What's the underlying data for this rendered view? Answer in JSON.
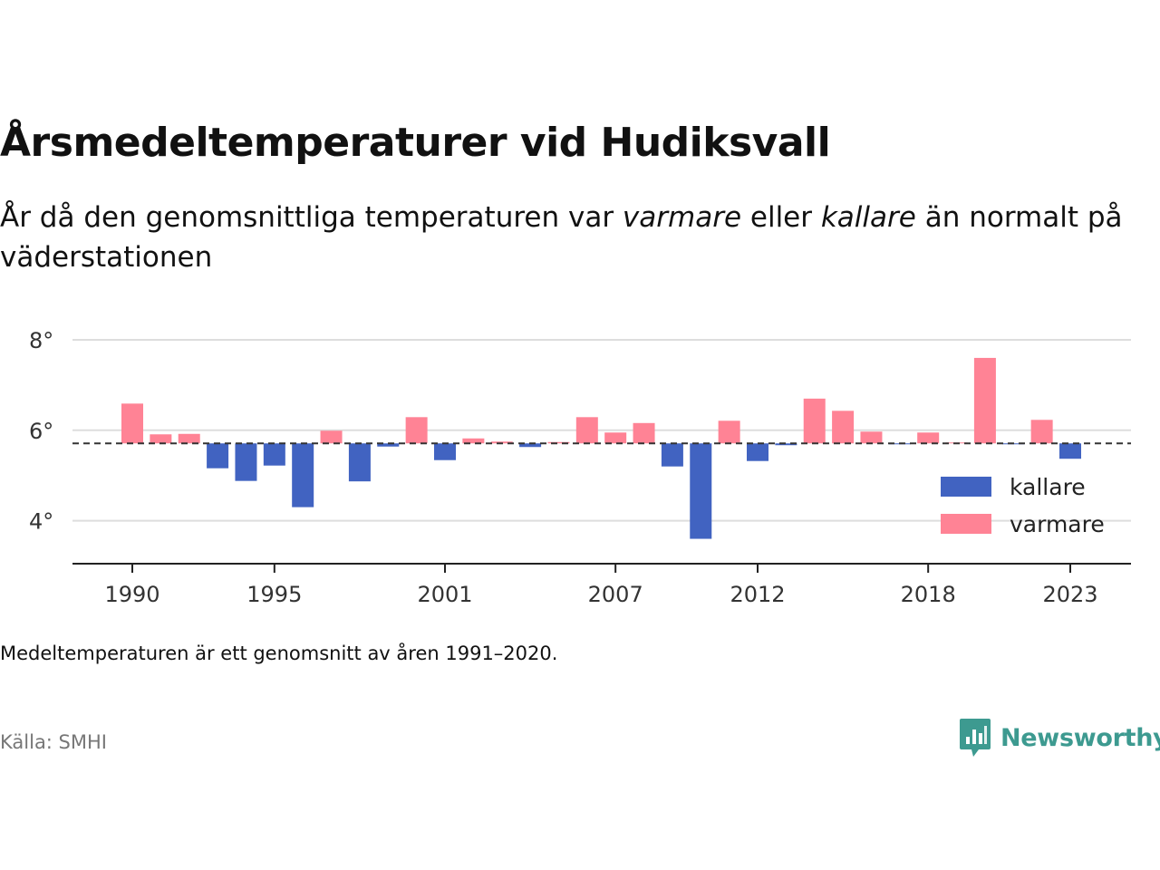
{
  "chart_data": {
    "type": "bar",
    "title": "Årsmedeltemperaturer vid Hudiksvall",
    "subtitle_parts": [
      "År då den genomsnittliga temperaturen var ",
      "varmare",
      " eller ",
      "kallare",
      " än normalt på väderstationen"
    ],
    "x": [
      1990,
      1991,
      1992,
      1993,
      1994,
      1995,
      1996,
      1997,
      1998,
      1999,
      2000,
      2001,
      2002,
      2003,
      2004,
      2005,
      2006,
      2007,
      2008,
      2009,
      2010,
      2011,
      2012,
      2013,
      2014,
      2015,
      2016,
      2017,
      2018,
      2019,
      2020,
      2021,
      2022,
      2023
    ],
    "values": [
      6.59,
      5.91,
      5.92,
      5.16,
      4.88,
      5.22,
      4.3,
      5.99,
      4.87,
      5.64,
      6.29,
      5.34,
      5.82,
      5.75,
      5.63,
      5.74,
      6.29,
      5.95,
      6.16,
      5.2,
      3.6,
      6.21,
      5.32,
      5.67,
      6.7,
      6.43,
      5.97,
      5.7,
      5.95,
      5.73,
      7.6,
      5.7,
      6.23,
      5.37
    ],
    "baseline": 5.71,
    "ylim": [
      3.05,
      8.3
    ],
    "yticks": [
      4,
      6,
      8
    ],
    "ytick_labels": [
      "4°",
      "6°",
      "8°"
    ],
    "xticks": [
      1990,
      1995,
      2001,
      2007,
      2012,
      2018,
      2023
    ],
    "xtick_labels": [
      "1990",
      "1995",
      "2001",
      "2007",
      "2012",
      "2018",
      "2023"
    ],
    "grid": true,
    "legend": {
      "placement": "right",
      "items": [
        {
          "label": "kallare",
          "color": "#4163c1"
        },
        {
          "label": "varmare",
          "color": "#ff8395"
        }
      ]
    },
    "colors": {
      "warm": "#ff8395",
      "cold": "#4163c1",
      "baseline": "#333333",
      "grid": "#dddddd"
    }
  },
  "footer": {
    "note": "Medeltemperaturen är ett genomsnitt av åren 1991–2020.",
    "source": "Källa: SMHI",
    "brand": "Newsworthy",
    "brand_icon": "bar-chart-speech-bubble-icon",
    "brand_color": "#3d9a90"
  }
}
